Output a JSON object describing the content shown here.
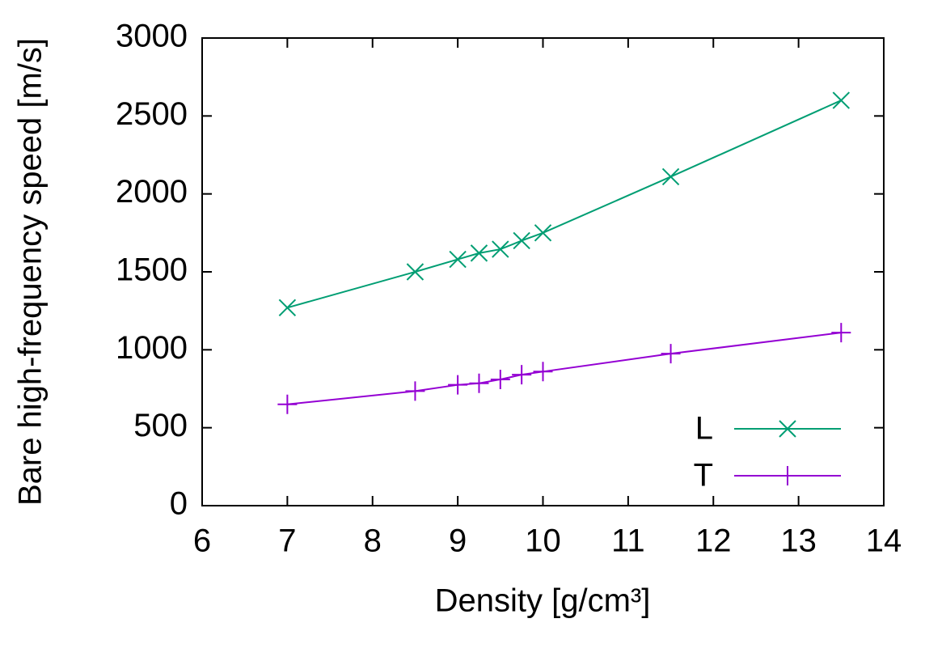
{
  "chart_data": {
    "type": "line",
    "xlabel": "Density [g/cm³]",
    "ylabel": "Bare high-frequency speed [m/s]",
    "x": [
      7,
      8.5,
      9,
      9.25,
      9.5,
      9.75,
      10,
      11.5,
      13.5
    ],
    "series": [
      {
        "name": "L",
        "color": "#009e73",
        "marker": "x",
        "values": [
          1270,
          1500,
          1580,
          1620,
          1645,
          1700,
          1750,
          2110,
          2600
        ]
      },
      {
        "name": "T",
        "color": "#9400d3",
        "marker": "+",
        "values": [
          650,
          735,
          775,
          785,
          810,
          840,
          860,
          975,
          1110
        ]
      }
    ],
    "xlim": [
      6,
      14
    ],
    "xticks": [
      6,
      7,
      8,
      9,
      10,
      11,
      12,
      13,
      14
    ],
    "ylim": [
      0,
      3000
    ],
    "yticks": [
      0,
      500,
      1000,
      1500,
      2000,
      2500,
      3000
    ],
    "grid": false,
    "legend": "lower right"
  }
}
